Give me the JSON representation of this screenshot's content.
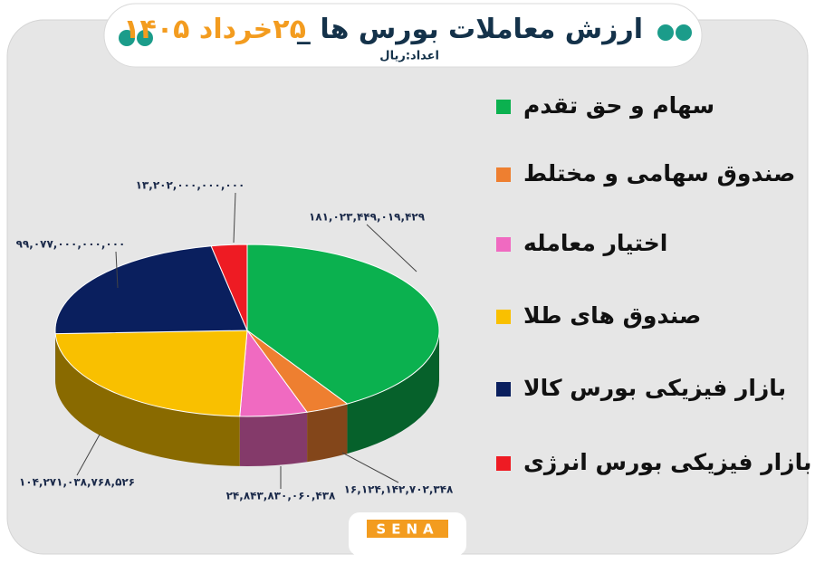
{
  "chart_data": {
    "type": "pie",
    "title": "ارزش معاملات بورس ها _",
    "title_date": "۲۵خرداد ۱۴۰۵",
    "subtitle": "اعداد:ریال",
    "categories": [
      "سهام و حق تقدم",
      "صندوق سهامی و مختلط",
      "اختیار معامله",
      "صندوق های طلا",
      "بازار فیزیکی بورس کالا",
      "بازار فیزیکی بورس انرژی"
    ],
    "values": [
      181023449019429,
      16124142702348,
      24843830060438,
      104271038768526,
      99077000000000,
      13202000000000
    ],
    "value_labels": [
      "۱۸۱,۰۲۳,۴۴۹,۰۱۹,۴۲۹",
      "۱۶,۱۲۴,۱۴۲,۷۰۲,۳۴۸",
      "۲۴,۸۴۳,۸۳۰,۰۶۰,۴۳۸",
      "۱۰۴,۲۷۱,۰۳۸,۷۶۸,۵۲۶",
      "۹۹,۰۷۷,۰۰۰,۰۰۰,۰۰۰",
      "۱۳,۲۰۲,۰۰۰,۰۰۰,۰۰۰"
    ],
    "colors": [
      "#0bb14f",
      "#ee7f30",
      "#f06ac1",
      "#f9c000",
      "#0a1f5e",
      "#ee1b23"
    ],
    "logo": "SENA"
  }
}
